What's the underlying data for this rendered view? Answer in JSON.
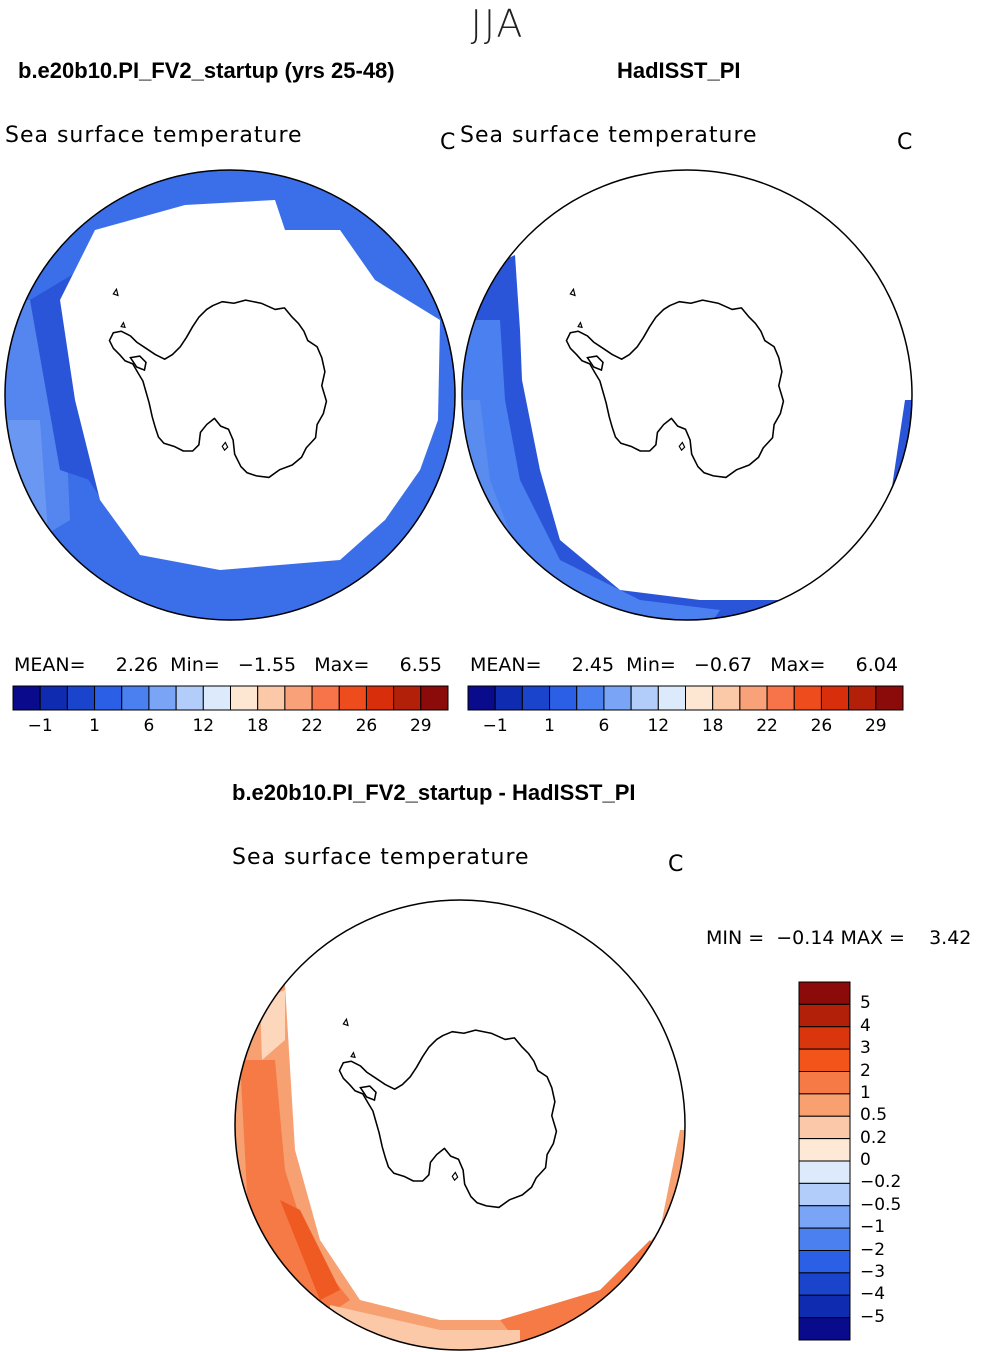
{
  "season": "JJA",
  "variable": "Sea surface temperature",
  "unit": "C",
  "panels": [
    {
      "title": "b.e20b10.PI_FV2_startup (yrs 25-48)",
      "stats": {
        "mean_label": "MEAN=",
        "mean": "2.26",
        "min_label": "Min=",
        "min": "−1.55",
        "max_label": "Max=",
        "max": "6.55"
      }
    },
    {
      "title": "HadISST_PI",
      "stats": {
        "mean_label": "MEAN=",
        "mean": "2.45",
        "min_label": "Min=",
        "min": "−0.67",
        "max_label": "Max=",
        "max": "6.04"
      }
    }
  ],
  "abs_colorbar": {
    "colors": [
      "#0a0a8c",
      "#0f2cb0",
      "#1a44cc",
      "#2a5fe6",
      "#4a80f0",
      "#7aa4f5",
      "#b3cdfa",
      "#dceafc",
      "#fde6d2",
      "#fcc9a8",
      "#f9a178",
      "#f7744a",
      "#ef4c1e",
      "#d92e0c",
      "#b3200a",
      "#8b0a0a"
    ],
    "ticks": [
      "−1",
      "1",
      "6",
      "12",
      "18",
      "22",
      "26",
      "29"
    ]
  },
  "diff_panel": {
    "title": "b.e20b10.PI_FV2_startup - HadISST_PI",
    "min_label": "MIN =",
    "min": "−0.14",
    "max_label": "MAX =",
    "max": "3.42"
  },
  "diff_colorbar": {
    "colors_top_to_bottom": [
      "#8b0a0a",
      "#b3200a",
      "#d9360e",
      "#f25419",
      "#f57a45",
      "#f8a070",
      "#fbc9a9",
      "#fde9d5",
      "#dceafc",
      "#b3cdfa",
      "#7aa4f5",
      "#4a80f0",
      "#2a5fe6",
      "#1a44cc",
      "#0f2cb0",
      "#0a0a8c"
    ],
    "ticks": [
      "5",
      "4",
      "3",
      "2",
      "1",
      "0.5",
      "0.2",
      "0",
      "−0.2",
      "−0.5",
      "−1",
      "−2",
      "−3",
      "−4",
      "−5"
    ]
  }
}
